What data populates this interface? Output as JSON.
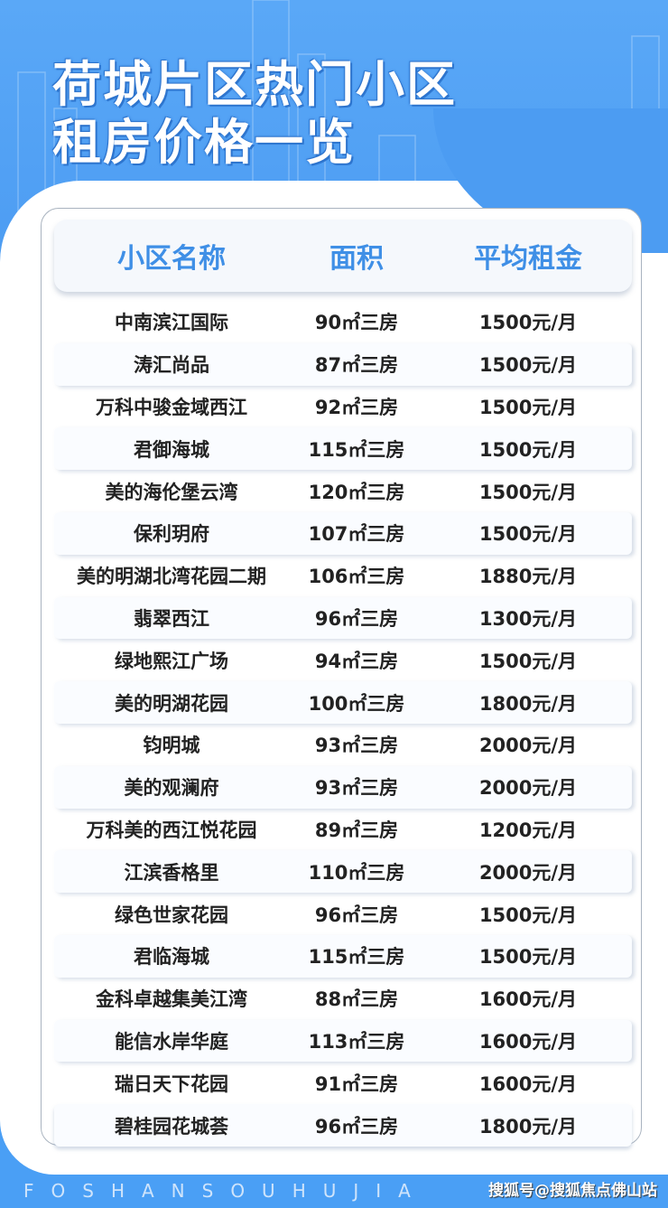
{
  "title": {
    "line1": "荷城片区热门小区",
    "line2": "租房价格一览"
  },
  "table": {
    "headers": [
      "小区名称",
      "面积",
      "平均租金"
    ],
    "rows": [
      [
        "中南滨江国际",
        "90㎡三房",
        "1500元/月"
      ],
      [
        "涛汇尚品",
        "87㎡三房",
        "1500元/月"
      ],
      [
        "万科中骏金域西江",
        "92㎡三房",
        "1500元/月"
      ],
      [
        "君御海城",
        "115㎡三房",
        "1500元/月"
      ],
      [
        "美的海伦堡云湾",
        "120㎡三房",
        "1500元/月"
      ],
      [
        "保利玥府",
        "107㎡三房",
        "1500元/月"
      ],
      [
        "美的明湖北湾花园二期",
        "106㎡三房",
        "1880元/月"
      ],
      [
        "翡翠西江",
        "96㎡三房",
        "1300元/月"
      ],
      [
        "绿地熙江广场",
        "94㎡三房",
        "1500元/月"
      ],
      [
        "美的明湖花园",
        "100㎡三房",
        "1800元/月"
      ],
      [
        "钧明城",
        "93㎡三房",
        "2000元/月"
      ],
      [
        "美的观澜府",
        "93㎡三房",
        "2000元/月"
      ],
      [
        "万科美的西江悦花园",
        "89㎡三房",
        "1200元/月"
      ],
      [
        "江滨香格里",
        "110㎡三房",
        "2000元/月"
      ],
      [
        "绿色世家花园",
        "96㎡三房",
        "1500元/月"
      ],
      [
        "君临海城",
        "115㎡三房",
        "1500元/月"
      ],
      [
        "金科卓越集美江湾",
        "88㎡三房",
        "1600元/月"
      ],
      [
        "能信水岸华庭",
        "113㎡三房",
        "1600元/月"
      ],
      [
        "瑞日天下花园",
        "91㎡三房",
        "1600元/月"
      ],
      [
        "碧桂园花城荟",
        "96㎡三房",
        "1800元/月"
      ]
    ]
  },
  "footer": {
    "letters": "FOSHANSOUHUJIA",
    "watermark": "搜狐号@搜狐焦点佛山站"
  },
  "colors": {
    "brand": "#4c9cf2",
    "header_text": "#3f8fe6"
  }
}
